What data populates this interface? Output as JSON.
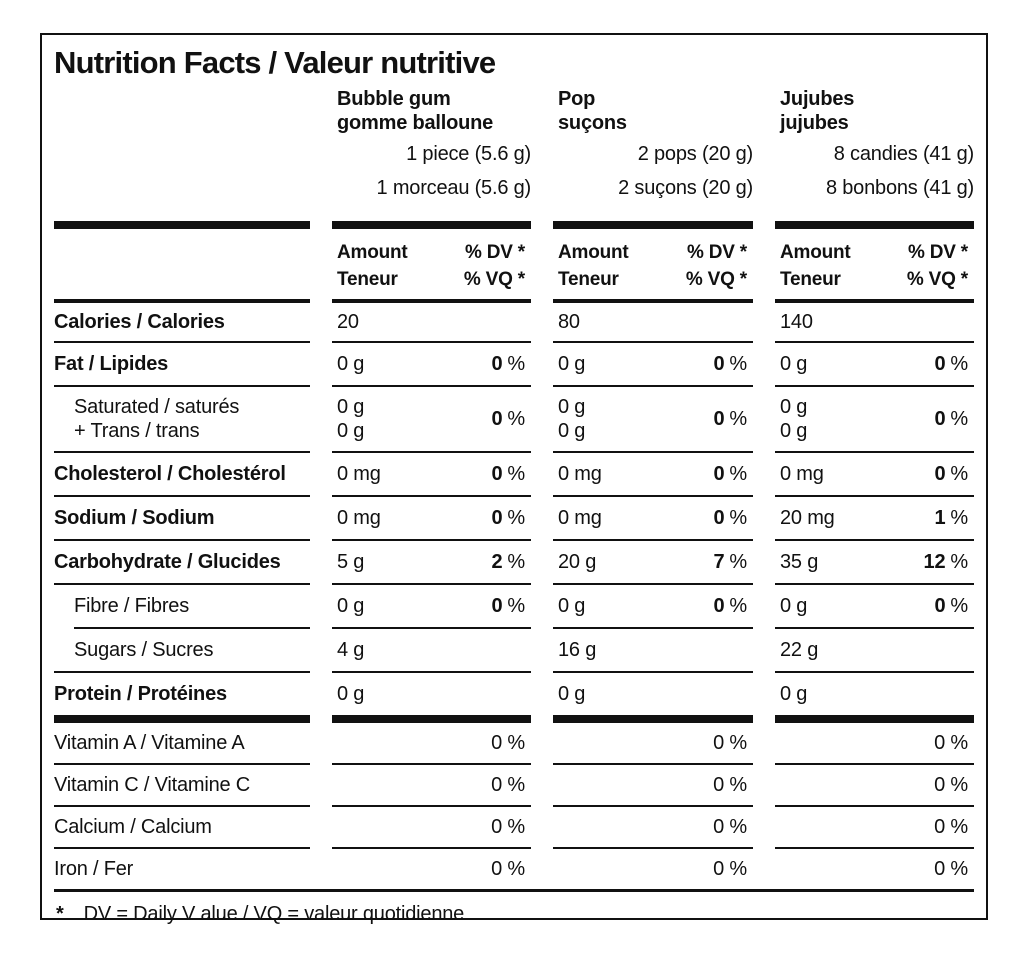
{
  "title": "Nutrition Facts / Valeur nutritive",
  "products": [
    {
      "name_line1": "Bubble gum",
      "name_line2": "gomme balloune",
      "serving_line1": "1 piece (5.6 g)",
      "serving_line2": "1 morceau (5.6 g)"
    },
    {
      "name_line1": "Pop",
      "name_line2": "suçons",
      "serving_line1": "2 pops (20 g)",
      "serving_line2": "2 suçons (20 g)"
    },
    {
      "name_line1": "Jujubes",
      "name_line2": "jujubes",
      "serving_line1": "8 candies (41 g)",
      "serving_line2": "8 bonbons (41 g)"
    }
  ],
  "column_header": {
    "amount_en": "Amount",
    "amount_fr": "Teneur",
    "dv_en": "% DV *",
    "dv_fr": "% VQ *"
  },
  "symbols": {
    "percent": "%"
  },
  "rows": {
    "calories": {
      "label": "Calories / Calories",
      "values": [
        "20",
        "80",
        "140"
      ]
    },
    "fat": {
      "label": "Fat / Lipides",
      "amounts": [
        "0 g",
        "0 g",
        "0 g"
      ],
      "dv": [
        "0",
        "0",
        "0"
      ]
    },
    "saturated": {
      "label_line1": "Saturated / saturés",
      "label_line2": "+ Trans / trans",
      "amounts_line1": [
        "0 g",
        "0 g",
        "0 g"
      ],
      "amounts_line2": [
        "0 g",
        "0 g",
        "0 g"
      ],
      "dv": [
        "0",
        "0",
        "0"
      ]
    },
    "cholesterol": {
      "label": "Cholesterol / Cholestérol",
      "amounts": [
        "0 mg",
        "0 mg",
        "0 mg"
      ],
      "dv": [
        "0",
        "0",
        "0"
      ]
    },
    "sodium": {
      "label": "Sodium / Sodium",
      "amounts": [
        "0 mg",
        "0 mg",
        "20 mg"
      ],
      "dv": [
        "0",
        "0",
        "1"
      ]
    },
    "carbohydrate": {
      "label": "Carbohydrate / Glucides",
      "amounts": [
        "5 g",
        "20 g",
        "35 g"
      ],
      "dv": [
        "2",
        "7",
        "12"
      ]
    },
    "fibre": {
      "label": "Fibre / Fibres",
      "amounts": [
        "0 g",
        "0 g",
        "0 g"
      ],
      "dv": [
        "0",
        "0",
        "0"
      ]
    },
    "sugars": {
      "label": "Sugars / Sucres",
      "amounts": [
        "4 g",
        "16 g",
        "22 g"
      ]
    },
    "protein": {
      "label": "Protein / Protéines",
      "amounts": [
        "0 g",
        "0 g",
        "0 g"
      ]
    },
    "vitamin_a": {
      "label": "Vitamin A / Vitamine A",
      "dv": [
        "0 %",
        "0 %",
        "0 %"
      ]
    },
    "vitamin_c": {
      "label": "Vitamin C / Vitamine C",
      "dv": [
        "0 %",
        "0 %",
        "0 %"
      ]
    },
    "calcium": {
      "label": "Calcium / Calcium",
      "dv": [
        "0 %",
        "0 %",
        "0 %"
      ]
    },
    "iron": {
      "label": "Iron / Fer",
      "dv": [
        "0 %",
        "0 %",
        "0 %"
      ]
    }
  },
  "footnote": {
    "star": "*",
    "text": "DV = Daily V alue / VQ = valeur quotidienne"
  }
}
